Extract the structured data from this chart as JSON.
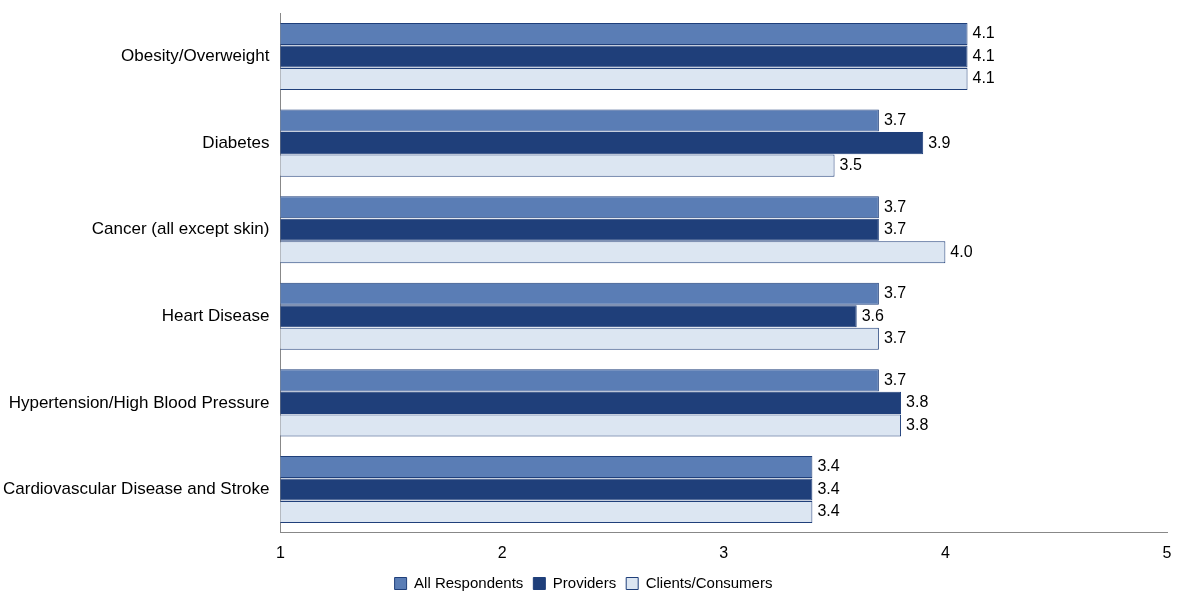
{
  "chart_data": {
    "type": "bar",
    "orientation": "horizontal",
    "categories": [
      "Obesity/Overweight",
      "Diabetes",
      "Cancer (all except skin)",
      "Heart Disease",
      "Hypertension/High Blood Pressure",
      "Cardiovascular Disease and Stroke"
    ],
    "series": [
      {
        "name": "All Respondents",
        "color": "#5a7db5",
        "values": [
          4.1,
          3.7,
          3.7,
          3.7,
          3.7,
          3.4
        ],
        "value_labels": [
          "4.1",
          "3.7",
          "3.7",
          "3.7",
          "3.7",
          "3.4"
        ]
      },
      {
        "name": "Providers",
        "color": "#1f3f7a",
        "values": [
          4.1,
          3.9,
          3.7,
          3.6,
          3.8,
          3.4
        ],
        "value_labels": [
          "4.1",
          "3.9",
          "3.7",
          "3.6",
          "3.8",
          "3.4"
        ]
      },
      {
        "name": "Clients/Consumers",
        "color": "#dce6f2",
        "values": [
          4.1,
          3.5,
          4.0,
          3.7,
          3.8,
          3.4
        ],
        "value_labels": [
          "4.1",
          "3.5",
          "4.0",
          "3.7",
          "3.8",
          "3.4"
        ]
      }
    ],
    "xlim": [
      1,
      5
    ],
    "xticks": [
      1,
      2,
      3,
      4,
      5
    ],
    "grid": false,
    "legend": "bottom"
  }
}
